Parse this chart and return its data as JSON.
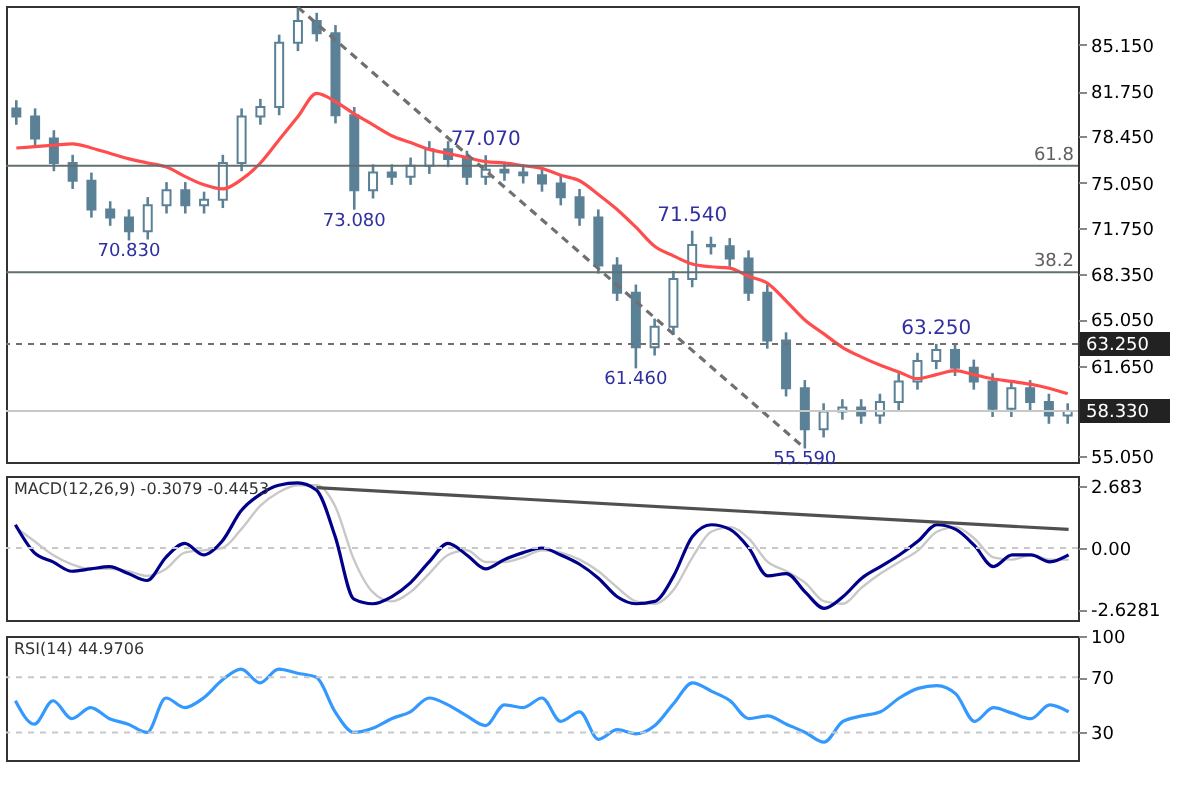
{
  "chart_data": [
    {
      "type": "candlestick",
      "categories": [
        null,
        null,
        null,
        null,
        null,
        null,
        null,
        null,
        null,
        null,
        null,
        null,
        null,
        null,
        null,
        null,
        null,
        null,
        null,
        null,
        null,
        null,
        null,
        null,
        null,
        null,
        null,
        null,
        null,
        null,
        null,
        null,
        null,
        null,
        null,
        null,
        null,
        null,
        null,
        null,
        null,
        null,
        null,
        null,
        null,
        null,
        null,
        null,
        null,
        null,
        null,
        null,
        null,
        null,
        null,
        null,
        null
      ],
      "ohlc": [
        [
          80.5,
          81.1,
          79.3,
          79.9
        ],
        [
          79.9,
          80.5,
          77.7,
          78.3
        ],
        [
          78.3,
          78.9,
          75.9,
          76.5
        ],
        [
          76.5,
          77.1,
          74.6,
          75.2
        ],
        [
          75.2,
          75.8,
          72.5,
          73.1
        ],
        [
          73.1,
          73.7,
          71.9,
          72.5
        ],
        [
          72.5,
          73.1,
          70.83,
          71.5
        ],
        [
          71.5,
          74.0,
          70.9,
          73.4
        ],
        [
          73.4,
          75.1,
          72.8,
          74.5
        ],
        [
          74.5,
          75.1,
          72.8,
          73.4
        ],
        [
          73.4,
          74.4,
          72.8,
          73.8
        ],
        [
          73.8,
          77.1,
          73.2,
          76.5
        ],
        [
          76.5,
          80.5,
          75.9,
          79.9
        ],
        [
          79.9,
          81.2,
          79.3,
          80.6
        ],
        [
          80.6,
          85.9,
          80.0,
          85.3
        ],
        [
          85.3,
          87.9,
          84.7,
          86.9
        ],
        [
          86.9,
          87.5,
          85.4,
          86.0
        ],
        [
          86.0,
          86.6,
          79.4,
          80.0
        ],
        [
          80.0,
          80.6,
          73.08,
          74.5
        ],
        [
          74.5,
          76.4,
          73.9,
          75.8
        ],
        [
          75.8,
          76.4,
          74.9,
          75.5
        ],
        [
          75.5,
          76.9,
          74.9,
          76.3
        ],
        [
          76.3,
          78.1,
          75.7,
          77.5
        ],
        [
          77.5,
          78.1,
          76.2,
          76.8
        ],
        [
          76.8,
          77.4,
          74.9,
          75.5
        ],
        [
          75.5,
          77.07,
          74.9,
          76.0
        ],
        [
          76.0,
          76.6,
          75.2,
          75.8
        ],
        [
          75.8,
          76.4,
          75.0,
          75.6
        ],
        [
          75.6,
          76.2,
          74.4,
          75.0
        ],
        [
          75.0,
          75.6,
          73.4,
          74.0
        ],
        [
          74.0,
          74.6,
          71.9,
          72.5
        ],
        [
          72.5,
          73.1,
          68.4,
          69.0
        ],
        [
          69.0,
          69.6,
          66.4,
          67.0
        ],
        [
          67.0,
          67.6,
          61.46,
          63.0
        ],
        [
          63.0,
          65.1,
          62.4,
          64.5
        ],
        [
          64.5,
          68.6,
          63.9,
          68.0
        ],
        [
          68.0,
          71.54,
          67.4,
          70.5
        ],
        [
          70.5,
          71.1,
          69.8,
          70.4
        ],
        [
          70.4,
          71.0,
          68.9,
          69.5
        ],
        [
          69.5,
          70.1,
          66.4,
          67.0
        ],
        [
          67.0,
          67.6,
          62.9,
          63.5
        ],
        [
          63.5,
          64.1,
          59.4,
          60.0
        ],
        [
          60.0,
          60.6,
          55.59,
          57.0
        ],
        [
          57.0,
          58.9,
          56.4,
          58.3
        ],
        [
          58.3,
          59.2,
          57.7,
          58.6
        ],
        [
          58.6,
          59.2,
          57.4,
          58.0
        ],
        [
          58.0,
          59.6,
          57.4,
          59.0
        ],
        [
          59.0,
          61.1,
          58.4,
          60.5
        ],
        [
          60.5,
          62.6,
          59.9,
          62.0
        ],
        [
          62.0,
          63.25,
          61.4,
          62.8
        ],
        [
          62.8,
          63.2,
          60.9,
          61.5
        ],
        [
          61.5,
          62.1,
          59.9,
          60.5
        ],
        [
          60.5,
          61.1,
          57.9,
          58.5
        ],
        [
          58.5,
          60.6,
          57.9,
          60.0
        ],
        [
          60.0,
          60.6,
          58.4,
          59.0
        ],
        [
          59.0,
          59.6,
          57.4,
          58.0
        ],
        [
          58.0,
          58.9,
          57.4,
          58.33
        ]
      ],
      "colors": [
        "#5b8196",
        "#5b8196",
        "#5b8196",
        "#5b8196",
        "#5b8196",
        "#5b8196",
        "#5b8196",
        "#5b8196",
        "#5b8196",
        "#5b8196",
        "#5b8196",
        "#5b8196",
        "#5b8196",
        "#5b8196",
        "#5b8196",
        "#5b8196",
        "#5b8196",
        "#5b8196",
        "#5b8196",
        "#5b8196",
        "#5b8196",
        "#5b8196",
        "#5b8196",
        "#5b8196",
        "#5b8196",
        "#5b8196",
        "#5b8196",
        "#5b8196",
        "#5b8196",
        "#5b8196",
        "#5b8196",
        "#5b8196",
        "#5b8196",
        "#5b8196",
        "#5b8196",
        "#5b8196",
        "#5b8196",
        "#5b8196",
        "#5b8196",
        "#5b8196",
        "#5b8196",
        "#5b8196",
        "#5b8196",
        "#5b8196",
        "#5b8196",
        "#5b8196",
        "#5b8196",
        "#5b8196",
        "#5b8196",
        "#5b8196",
        "#5b8196",
        "#5b8196",
        "#5b8196",
        "#5b8196",
        "#5b8196",
        "#5b8196",
        "#5b8196"
      ],
      "series": [
        {
          "type": "line",
          "color": "#ff4d4d",
          "values": [
            77.6,
            77.7,
            77.8,
            77.9,
            77.6,
            77.2,
            76.8,
            76.5,
            76.2,
            75.5,
            74.9,
            74.6,
            75.3,
            76.5,
            78.2,
            79.9,
            81.6,
            81.0,
            80.1,
            79.3,
            78.5,
            78.0,
            77.5,
            77.2,
            76.9,
            76.6,
            76.5,
            76.3,
            76.1,
            75.6,
            75.2,
            74.2,
            73.1,
            71.8,
            70.4,
            69.7,
            69.1,
            68.9,
            68.8,
            68.2,
            67.7,
            66.4,
            65.0,
            64.0,
            63.0,
            62.3,
            61.7,
            61.2,
            60.7,
            61.0,
            61.3,
            61.0,
            60.7,
            60.5,
            60.3,
            60.0,
            59.6
          ]
        },
        {
          "type": "line",
          "color": "#707070",
          "line_style": "dashed",
          "values": [
            null,
            null,
            null,
            null,
            null,
            null,
            null,
            null,
            null,
            null,
            null,
            null,
            null,
            null,
            null,
            87.9,
            null,
            null,
            null,
            null,
            null,
            null,
            null,
            null,
            null,
            null,
            null,
            null,
            null,
            null,
            null,
            null,
            null,
            null,
            null,
            null,
            null,
            null,
            null,
            null,
            null,
            null,
            55.6,
            null,
            null,
            null,
            null,
            null,
            null,
            null,
            null,
            null,
            null,
            null,
            null,
            null,
            null
          ]
        }
      ],
      "ylim": [
        54.6,
        88.0
      ],
      "yticks": [
        {
          "value": 55.05,
          "label": "55.050"
        },
        {
          "value": 61.65,
          "label": "61.650"
        },
        {
          "value": 65.05,
          "label": "65.050"
        },
        {
          "value": 68.35,
          "label": "68.350"
        },
        {
          "value": 71.75,
          "label": "71.750"
        },
        {
          "value": 75.05,
          "label": "75.050"
        },
        {
          "value": 78.45,
          "label": "78.450"
        },
        {
          "value": 81.75,
          "label": "81.750"
        },
        {
          "value": 85.15,
          "label": "85.150"
        }
      ],
      "ref_lines": [
        {
          "axis": "y",
          "value": 76.3,
          "color": "#607070"
        },
        {
          "axis": "y",
          "value": 68.5,
          "color": "#607070"
        },
        {
          "axis": "y",
          "value": 63.25,
          "label": "63.250",
          "color": "#707070",
          "line_style": "dashed"
        },
        {
          "axis": "y",
          "value": 58.33,
          "label": "58.330",
          "color": "#c8c8c8"
        }
      ],
      "annotations": [
        {
          "text": "61.8",
          "y": 76.3
        },
        {
          "text": "38.2",
          "y": 68.5
        },
        {
          "text": "70.830",
          "y": 70.83
        },
        {
          "text": "73.080",
          "y": 73.08
        },
        {
          "text": "77.070",
          "y": 77.07
        },
        {
          "text": "61.460",
          "y": 61.46
        },
        {
          "text": "71.540",
          "y": 71.54
        },
        {
          "text": "55.590",
          "y": 55.59
        },
        {
          "text": "63.250",
          "y": 63.25
        }
      ],
      "tick_labels": "y",
      "grid": false,
      "legend": false
    },
    {
      "type": "line",
      "title": "MACD(12,26,9) -0.3079 -0.4453",
      "categories": [
        null,
        null,
        null,
        null,
        null,
        null,
        null,
        null,
        null,
        null,
        null,
        null,
        null,
        null,
        null,
        null,
        null,
        null,
        null,
        null,
        null,
        null,
        null,
        null,
        null,
        null,
        null,
        null,
        null,
        null,
        null,
        null,
        null,
        null,
        null,
        null,
        null,
        null,
        null,
        null,
        null,
        null,
        null,
        null,
        null,
        null,
        null,
        null,
        null,
        null,
        null,
        null,
        null,
        null,
        null,
        null,
        null
      ],
      "series": [
        {
          "color": "#c8c8c8",
          "values": [
            0.9,
            0.3,
            -0.3,
            -0.7,
            -0.9,
            -0.9,
            -1.0,
            -1.2,
            -0.9,
            -0.2,
            -0.1,
            0.0,
            0.8,
            1.8,
            2.4,
            2.7,
            2.7,
            1.8,
            -0.5,
            -1.9,
            -2.3,
            -1.9,
            -1.1,
            -0.3,
            -0.1,
            -0.6,
            -0.6,
            -0.4,
            -0.1,
            -0.2,
            -0.5,
            -1.0,
            -1.7,
            -2.3,
            -2.4,
            -1.8,
            -0.4,
            0.7,
            0.9,
            0.4,
            -0.6,
            -1.0,
            -1.5,
            -2.3,
            -2.4,
            -1.7,
            -1.1,
            -0.6,
            -0.1,
            0.7,
            0.9,
            0.4,
            -0.4,
            -0.5,
            -0.3,
            -0.5,
            -0.5
          ]
        },
        {
          "color": "#00008b",
          "values": [
            1.0,
            -0.2,
            -0.6,
            -1.0,
            -0.9,
            -0.8,
            -1.1,
            -1.4,
            -0.4,
            0.2,
            -0.3,
            0.3,
            1.6,
            2.3,
            2.7,
            2.8,
            2.5,
            0.5,
            -2.2,
            -2.4,
            -2.1,
            -1.5,
            -0.6,
            0.2,
            -0.3,
            -0.9,
            -0.5,
            -0.2,
            0.0,
            -0.3,
            -0.7,
            -1.3,
            -2.1,
            -2.4,
            -2.3,
            -1.2,
            0.5,
            1.0,
            0.8,
            0.0,
            -1.2,
            -1.1,
            -1.9,
            -2.6,
            -2.1,
            -1.3,
            -0.8,
            -0.3,
            0.3,
            1.0,
            0.8,
            0.1,
            -0.8,
            -0.3,
            -0.3,
            -0.6,
            -0.3
          ]
        },
        {
          "color": "#505050",
          "values": [
            null,
            null,
            null,
            null,
            null,
            null,
            null,
            null,
            null,
            null,
            null,
            null,
            null,
            null,
            null,
            null,
            2.6,
            null,
            null,
            null,
            null,
            null,
            null,
            null,
            null,
            null,
            null,
            null,
            null,
            null,
            null,
            null,
            null,
            null,
            null,
            null,
            null,
            null,
            null,
            null,
            null,
            null,
            null,
            null,
            null,
            null,
            null,
            null,
            null,
            null,
            null,
            null,
            null,
            null,
            null,
            null,
            0.8
          ]
        }
      ],
      "ylim": [
        -3.1,
        3.1
      ],
      "yticks": [
        {
          "value": 2.683,
          "label": "2.683"
        },
        {
          "value": 0,
          "label": "0.00"
        },
        {
          "value": -2.6281,
          "label": "-2.6281"
        }
      ],
      "ref_lines": [
        {
          "axis": "y",
          "value": 0,
          "color": "#c8c8c8",
          "line_style": "dashed"
        }
      ],
      "tick_labels": "y",
      "grid": false,
      "legend": false
    },
    {
      "type": "line",
      "title": "RSI(14) 44.9706",
      "categories": [
        null,
        null,
        null,
        null,
        null,
        null,
        null,
        null,
        null,
        null,
        null,
        null,
        null,
        null,
        null,
        null,
        null,
        null,
        null,
        null,
        null,
        null,
        null,
        null,
        null,
        null,
        null,
        null,
        null,
        null,
        null,
        null,
        null,
        null,
        null,
        null,
        null,
        null,
        null,
        null,
        null,
        null,
        null,
        null,
        null,
        null,
        null,
        null,
        null,
        null,
        null,
        null,
        null,
        null,
        null,
        null,
        null
      ],
      "series": [
        {
          "color": "#3399ff",
          "values": [
            53,
            36,
            53,
            40,
            48,
            40,
            36,
            30,
            55,
            48,
            55,
            68,
            76,
            66,
            76,
            73,
            70,
            45,
            30,
            33,
            40,
            45,
            55,
            50,
            42,
            35,
            50,
            48,
            55,
            38,
            45,
            25,
            32,
            29,
            35,
            51,
            66,
            60,
            53,
            40,
            42,
            36,
            30,
            23,
            38,
            42,
            45,
            55,
            62,
            64,
            58,
            38,
            48,
            44,
            40,
            50,
            45
          ]
        }
      ],
      "ylim": [
        10,
        100
      ],
      "yticks": [
        100,
        70,
        30
      ],
      "ref_lines": [
        {
          "axis": "y",
          "value": 70,
          "color": "#c8c8c8",
          "line_style": "dashed"
        },
        {
          "axis": "y",
          "value": 30,
          "color": "#c8c8c8",
          "line_style": "dashed"
        }
      ],
      "tick_labels": "y",
      "grid": false,
      "legend": false
    }
  ]
}
